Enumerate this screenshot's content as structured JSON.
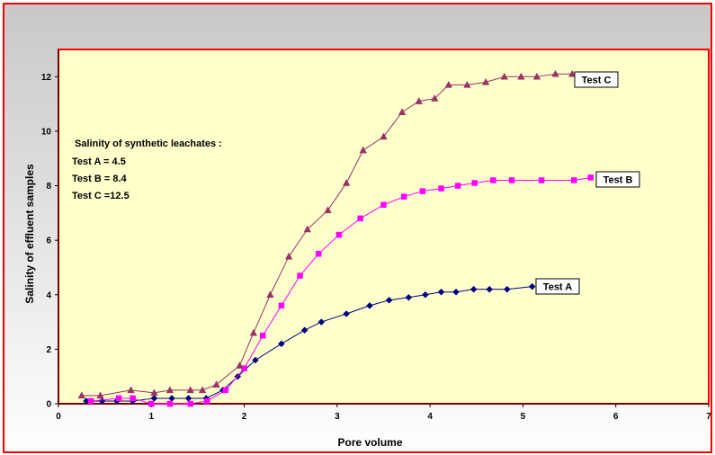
{
  "chart_data": {
    "type": "line",
    "title": "",
    "xlabel": "Pore volume",
    "ylabel": "Salinity of effluent samples",
    "xlim": [
      0,
      7
    ],
    "ylim": [
      0,
      13
    ],
    "xticks": [
      0,
      1,
      2,
      3,
      4,
      5,
      6,
      7
    ],
    "yticks": [
      0,
      2,
      4,
      6,
      8,
      10,
      12
    ],
    "grid": false,
    "plot_background": "#ffffcc",
    "plot_border_color": "#ff0000",
    "annotation": {
      "lines": [
        "Salinity of synthetic leachates :",
        "Test A = 4.5",
        "Test B = 8.4",
        "Test C =12.5"
      ]
    },
    "series": [
      {
        "name": "Test A",
        "color": "#000080",
        "marker": "diamond",
        "x": [
          0.3,
          0.47,
          0.63,
          0.8,
          1.03,
          1.22,
          1.4,
          1.59,
          1.77,
          1.93,
          2.12,
          2.4,
          2.65,
          2.83,
          3.1,
          3.35,
          3.56,
          3.77,
          3.95,
          4.12,
          4.28,
          4.47,
          4.64,
          4.83,
          5.1
        ],
        "y": [
          0.1,
          0.1,
          0.1,
          0.1,
          0.2,
          0.2,
          0.2,
          0.2,
          0.5,
          1.0,
          1.6,
          2.2,
          2.7,
          3.0,
          3.3,
          3.6,
          3.8,
          3.9,
          4.0,
          4.1,
          4.1,
          4.2,
          4.2,
          4.2,
          4.3
        ]
      },
      {
        "name": "Test B",
        "color": "#ff00ff",
        "marker": "square",
        "x": [
          0.35,
          0.65,
          0.8,
          1.0,
          1.2,
          1.42,
          1.6,
          1.8,
          2.0,
          2.2,
          2.4,
          2.6,
          2.8,
          3.02,
          3.25,
          3.5,
          3.72,
          3.92,
          4.12,
          4.3,
          4.48,
          4.68,
          4.88,
          5.2,
          5.55,
          5.73
        ],
        "y": [
          0.1,
          0.2,
          0.2,
          0.0,
          0.0,
          0.0,
          0.1,
          0.5,
          1.3,
          2.5,
          3.6,
          4.7,
          5.5,
          6.2,
          6.8,
          7.3,
          7.6,
          7.8,
          7.9,
          8.0,
          8.1,
          8.2,
          8.2,
          8.2,
          8.2,
          8.3
        ]
      },
      {
        "name": "Test C",
        "color": "#993366",
        "marker": "triangle",
        "x": [
          0.25,
          0.45,
          0.78,
          1.03,
          1.2,
          1.42,
          1.55,
          1.7,
          1.95,
          2.1,
          2.28,
          2.48,
          2.68,
          2.9,
          3.1,
          3.28,
          3.5,
          3.7,
          3.88,
          4.05,
          4.2,
          4.4,
          4.6,
          4.8,
          4.98,
          5.15,
          5.35,
          5.53
        ],
        "y": [
          0.3,
          0.3,
          0.5,
          0.4,
          0.5,
          0.5,
          0.5,
          0.7,
          1.4,
          2.6,
          4.0,
          5.4,
          6.4,
          7.1,
          8.1,
          9.3,
          9.8,
          10.7,
          11.1,
          11.2,
          11.7,
          11.7,
          11.8,
          12.0,
          12.0,
          12.0,
          12.1,
          12.1
        ]
      }
    ]
  }
}
